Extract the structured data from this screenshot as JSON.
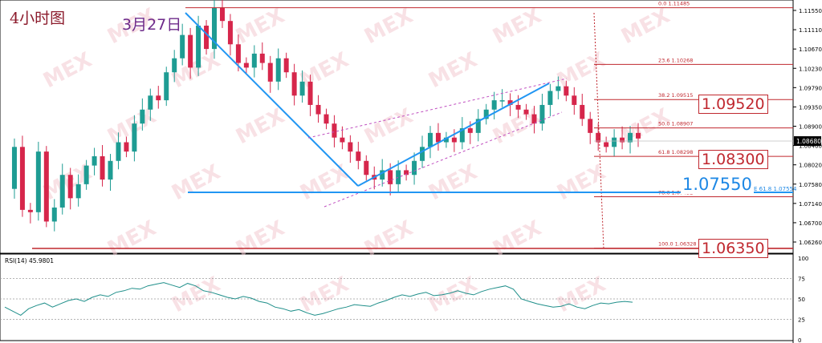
{
  "header": {
    "timeframe": "4小时图",
    "date_marker": "3月27日"
  },
  "rsi": {
    "label": "RSI(14) 45.9801",
    "levels": [
      "100",
      "75",
      "50",
      "25",
      "0"
    ]
  },
  "watermark": "MEX",
  "price_axis": {
    "ticks": [
      "1.11550",
      "1.11110",
      "1.10670",
      "1.10230",
      "1.09790",
      "1.09350",
      "1.08900",
      "1.08460",
      "1.08020",
      "1.07580",
      "1.07140",
      "1.06700",
      "1.06260"
    ],
    "current": "1.08680"
  },
  "fib_levels": [
    {
      "label": "0.0  1.11485",
      "price": 1.11485
    },
    {
      "label": "23.6  1.10268",
      "price": 1.10268
    },
    {
      "label": "38.2  1.09515",
      "price": 1.09515
    },
    {
      "label": "50.0  1.08907",
      "price": 1.08907
    },
    {
      "label": "61.8  1.08298",
      "price": 1.08298
    },
    {
      "label": "78.6  1.07432",
      "price": 1.07432
    },
    {
      "label": "100.0  1.06328",
      "price": 1.06328
    }
  ],
  "fe_label": "FE 61.8  1.07554",
  "key_levels": {
    "r1": "1.09520",
    "s1": "1.08300",
    "s2": "1.07550",
    "s3": "1.06350"
  },
  "colors": {
    "bull": "#1e9c93",
    "bear": "#d6264b",
    "fib": "#c0282f",
    "trend": "#2196f3",
    "channel": "#c04fc0",
    "rsi": "#1f8f8a"
  },
  "chart_data": {
    "type": "candlestick",
    "timeframe": "4小时图",
    "ylim": [
      1.0622,
      1.1165
    ],
    "price_series_approx": [
      1.076,
      1.085,
      1.0715,
      1.071,
      1.084,
      1.069,
      1.072,
      1.079,
      1.074,
      1.077,
      1.081,
      1.083,
      1.078,
      1.082,
      1.086,
      1.084,
      1.09,
      1.093,
      1.096,
      1.095,
      1.101,
      1.104,
      1.109,
      1.102,
      1.111,
      1.106,
      1.1148,
      1.112,
      1.107,
      1.103,
      1.102,
      1.105,
      1.103,
      1.099,
      1.104,
      1.101,
      1.096,
      1.099,
      1.094,
      1.092,
      1.09,
      1.087,
      1.086,
      1.084,
      1.082,
      1.079,
      1.078,
      1.08,
      1.077,
      1.08,
      1.079,
      1.082,
      1.085,
      1.088,
      1.086,
      1.087,
      1.086,
      1.089,
      1.088,
      1.091,
      1.093,
      1.095,
      1.095,
      1.094,
      1.093,
      1.092,
      1.09,
      1.094,
      1.097,
      1.098,
      1.096,
      1.094,
      1.091,
      1.088,
      1.086,
      1.085,
      1.087,
      1.086,
      1.088,
      1.0868
    ],
    "rsi_series_approx": [
      40,
      35,
      30,
      38,
      42,
      45,
      40,
      44,
      48,
      50,
      47,
      52,
      55,
      53,
      58,
      60,
      63,
      62,
      66,
      68,
      70,
      67,
      64,
      69,
      66,
      60,
      58,
      55,
      52,
      50,
      53,
      51,
      47,
      45,
      40,
      38,
      35,
      37,
      33,
      30,
      32,
      35,
      38,
      40,
      43,
      42,
      41,
      45,
      48,
      52,
      55,
      53,
      56,
      58,
      54,
      55,
      57,
      60,
      57,
      55,
      59,
      62,
      64,
      66,
      62,
      50,
      47,
      44,
      42,
      40,
      41,
      44,
      40,
      38,
      42,
      45,
      44,
      46,
      47,
      46
    ],
    "fibonacci": [
      {
        "level": "0.0",
        "price": 1.11485
      },
      {
        "level": "23.6",
        "price": 1.10268
      },
      {
        "level": "38.2",
        "price": 1.09515
      },
      {
        "level": "50.0",
        "price": 1.08907
      },
      {
        "level": "61.8",
        "price": 1.08298
      },
      {
        "level": "78.6",
        "price": 1.07432
      },
      {
        "level": "100.0",
        "price": 1.06328
      }
    ],
    "fib_expansion": {
      "level": "61.8",
      "price": 1.07554
    },
    "key_levels": [
      1.0952,
      1.083,
      1.0755,
      1.0635
    ],
    "current_price": 1.0868,
    "rsi": {
      "period": 14,
      "value": 45.9801,
      "ylim": [
        0,
        100
      ]
    }
  }
}
